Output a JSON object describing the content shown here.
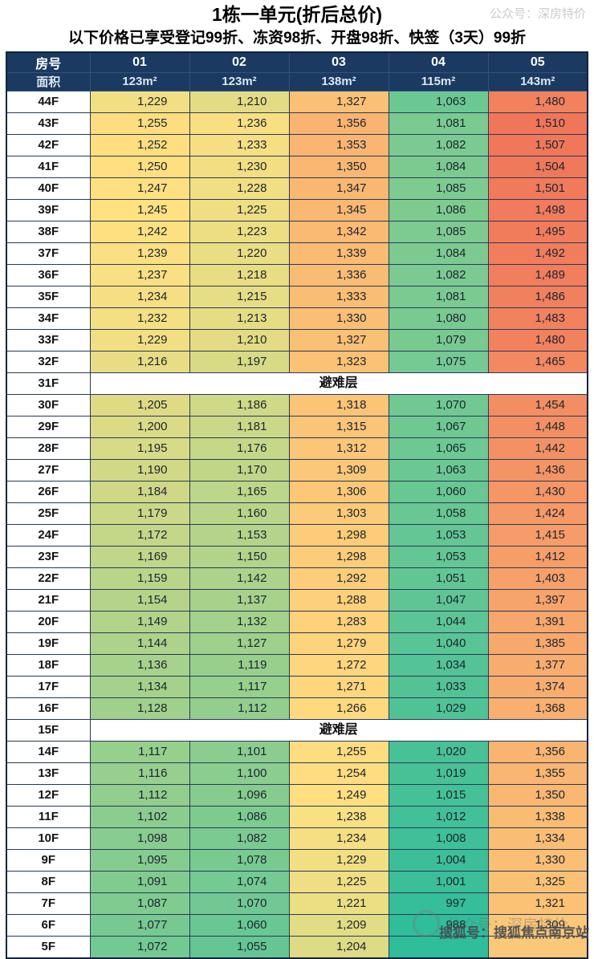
{
  "header": {
    "title": "1栋一单元(折后总价)",
    "subtitle": "以下价格已享受登记99折、冻资98折、开盘98折、快签（3天）99折"
  },
  "chart_data": {
    "type": "table",
    "title": "1栋一单元(折后总价)",
    "corner_label": "房号",
    "area_label": "面积",
    "columns": [
      "01",
      "02",
      "03",
      "04",
      "05"
    ],
    "areas": [
      "123m²",
      "123m²",
      "138m²",
      "115m²",
      "143m²"
    ],
    "refuge_label": "避难层",
    "refuge_floors": [
      "31F",
      "15F"
    ],
    "rows": [
      {
        "floor": "44F",
        "values": [
          1229,
          1210,
          1327,
          1063,
          1480
        ]
      },
      {
        "floor": "43F",
        "values": [
          1255,
          1236,
          1356,
          1081,
          1510
        ]
      },
      {
        "floor": "42F",
        "values": [
          1252,
          1233,
          1353,
          1082,
          1507
        ]
      },
      {
        "floor": "41F",
        "values": [
          1250,
          1230,
          1350,
          1084,
          1504
        ]
      },
      {
        "floor": "40F",
        "values": [
          1247,
          1228,
          1347,
          1085,
          1501
        ]
      },
      {
        "floor": "39F",
        "values": [
          1245,
          1225,
          1345,
          1086,
          1498
        ]
      },
      {
        "floor": "38F",
        "values": [
          1242,
          1223,
          1342,
          1085,
          1495
        ]
      },
      {
        "floor": "37F",
        "values": [
          1239,
          1220,
          1339,
          1084,
          1492
        ]
      },
      {
        "floor": "36F",
        "values": [
          1237,
          1218,
          1336,
          1082,
          1489
        ]
      },
      {
        "floor": "35F",
        "values": [
          1234,
          1215,
          1333,
          1081,
          1486
        ]
      },
      {
        "floor": "34F",
        "values": [
          1232,
          1213,
          1330,
          1080,
          1483
        ]
      },
      {
        "floor": "33F",
        "values": [
          1229,
          1210,
          1327,
          1079,
          1480
        ]
      },
      {
        "floor": "32F",
        "values": [
          1216,
          1197,
          1323,
          1075,
          1465
        ]
      },
      {
        "floor": "31F",
        "refuge": true
      },
      {
        "floor": "30F",
        "values": [
          1205,
          1186,
          1318,
          1070,
          1454
        ]
      },
      {
        "floor": "29F",
        "values": [
          1200,
          1181,
          1315,
          1067,
          1448
        ]
      },
      {
        "floor": "28F",
        "values": [
          1195,
          1176,
          1312,
          1065,
          1442
        ]
      },
      {
        "floor": "27F",
        "values": [
          1190,
          1170,
          1309,
          1063,
          1436
        ]
      },
      {
        "floor": "26F",
        "values": [
          1184,
          1165,
          1306,
          1060,
          1430
        ]
      },
      {
        "floor": "25F",
        "values": [
          1179,
          1160,
          1303,
          1058,
          1424
        ]
      },
      {
        "floor": "24F",
        "values": [
          1172,
          1153,
          1298,
          1053,
          1415
        ]
      },
      {
        "floor": "23F",
        "values": [
          1169,
          1150,
          1298,
          1053,
          1412
        ]
      },
      {
        "floor": "22F",
        "values": [
          1159,
          1142,
          1292,
          1051,
          1403
        ]
      },
      {
        "floor": "21F",
        "values": [
          1154,
          1137,
          1288,
          1047,
          1397
        ]
      },
      {
        "floor": "20F",
        "values": [
          1149,
          1132,
          1283,
          1044,
          1391
        ]
      },
      {
        "floor": "19F",
        "values": [
          1144,
          1127,
          1279,
          1040,
          1385
        ]
      },
      {
        "floor": "18F",
        "values": [
          1136,
          1119,
          1272,
          1034,
          1377
        ]
      },
      {
        "floor": "17F",
        "values": [
          1134,
          1117,
          1271,
          1033,
          1374
        ]
      },
      {
        "floor": "16F",
        "values": [
          1128,
          1112,
          1266,
          1029,
          1368
        ]
      },
      {
        "floor": "15F",
        "refuge": true
      },
      {
        "floor": "14F",
        "values": [
          1117,
          1101,
          1255,
          1020,
          1356
        ]
      },
      {
        "floor": "13F",
        "values": [
          1116,
          1100,
          1254,
          1019,
          1355
        ]
      },
      {
        "floor": "12F",
        "values": [
          1112,
          1096,
          1249,
          1015,
          1350
        ]
      },
      {
        "floor": "11F",
        "values": [
          1102,
          1086,
          1238,
          1012,
          1338
        ]
      },
      {
        "floor": "10F",
        "values": [
          1098,
          1082,
          1234,
          1008,
          1334
        ]
      },
      {
        "floor": "9F",
        "values": [
          1095,
          1078,
          1229,
          1004,
          1330
        ]
      },
      {
        "floor": "8F",
        "values": [
          1091,
          1074,
          1225,
          1001,
          1325
        ]
      },
      {
        "floor": "7F",
        "values": [
          1087,
          1070,
          1221,
          997,
          1321
        ]
      },
      {
        "floor": "6F",
        "values": [
          1077,
          1060,
          1209,
          988,
          1309
        ]
      },
      {
        "floor": "5F",
        "values": [
          1072,
          1055,
          1204,
          null,
          null
        ]
      }
    ],
    "color_scale": {
      "domain": [
        988,
        1245,
        1510
      ],
      "colors": [
        "#2fbd9a",
        "#ffe181",
        "#f0765a"
      ]
    }
  },
  "colors": {
    "header_bg": "#1a3a61",
    "header_text": "#ffffff",
    "area_text": "#dde6f2",
    "grid_border": "#273a58",
    "outer_border": "#15233c",
    "price_text": "#1c2430"
  },
  "watermarks": {
    "top_right": "公众号：深房特价",
    "bottom_faint": "公众号：深房特价",
    "bottom_dark": "搜狐号：搜狐焦点南京站"
  }
}
